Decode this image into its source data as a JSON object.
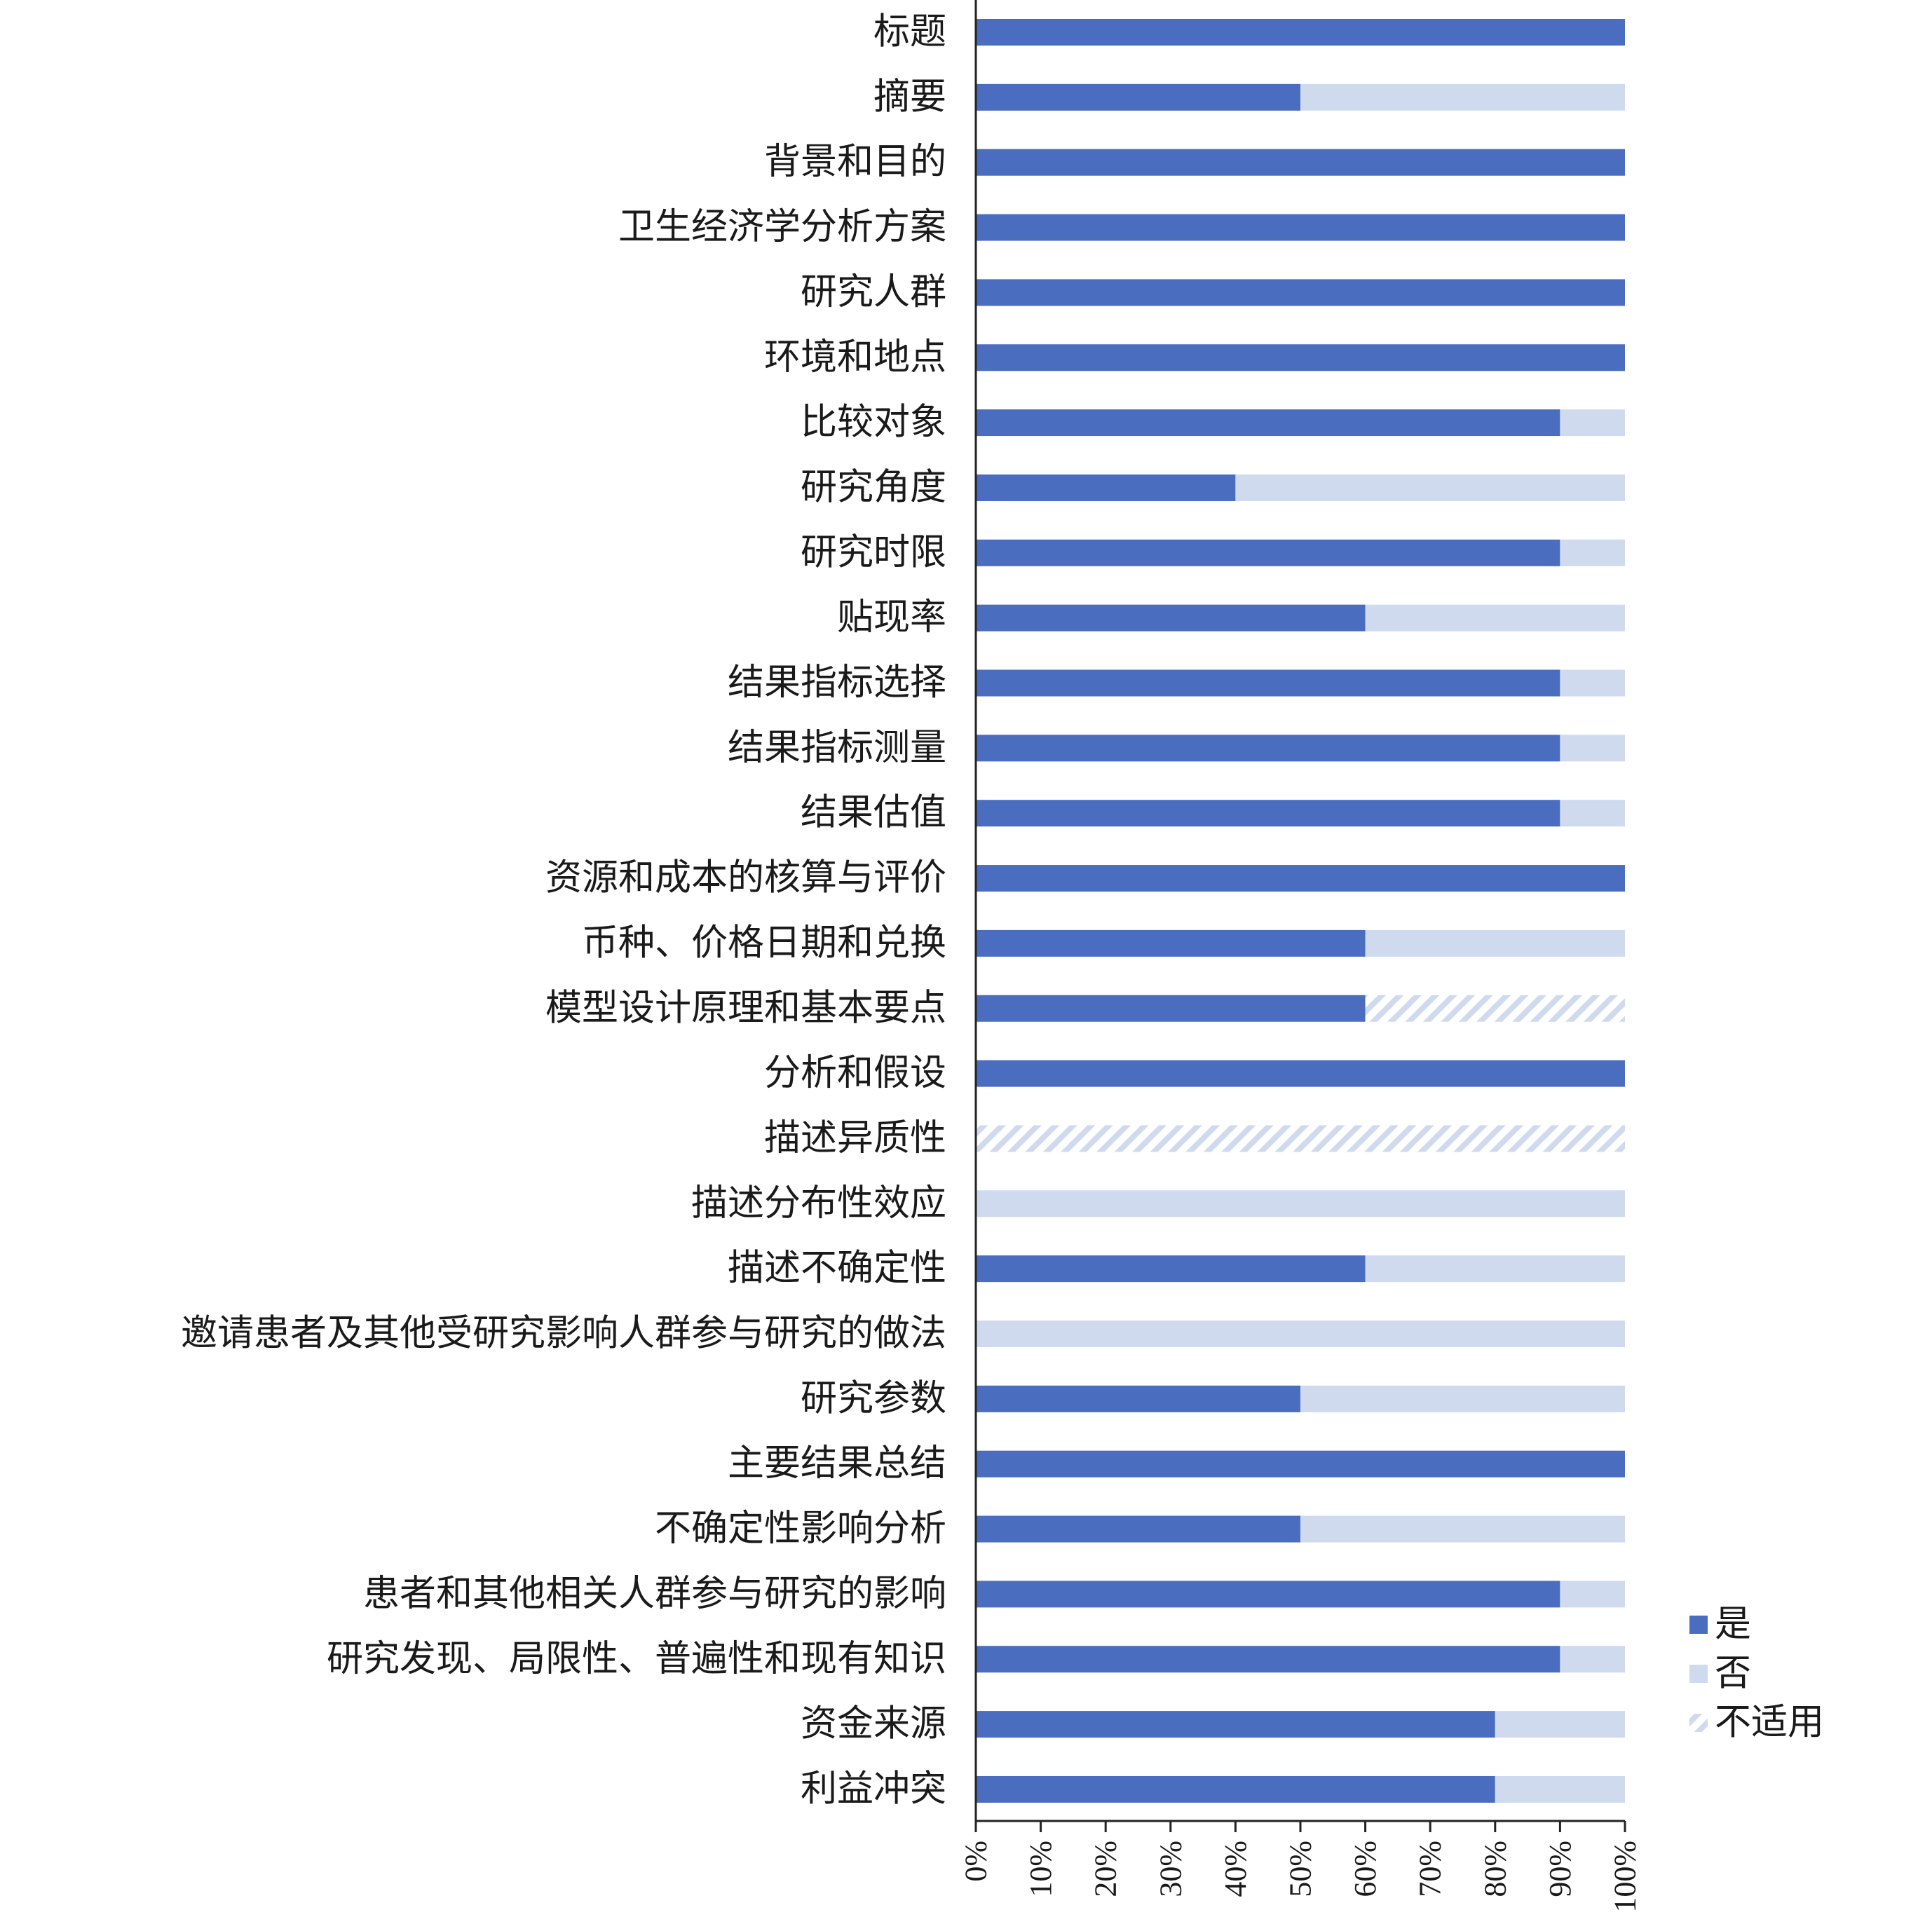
{
  "chart_data": {
    "type": "bar",
    "orientation": "horizontal",
    "stacked": true,
    "categories": [
      "标题",
      "摘要",
      "背景和目的",
      "卫生经济学分析方案",
      "研究人群",
      "环境和地点",
      "比较对象",
      "研究角度",
      "研究时限",
      "贴现率",
      "结果指标选择",
      "结果指标测量",
      "结果估值",
      "资源和成本的核算与评价",
      "币种、价格日期和兑换",
      "模型设计原理和基本要点",
      "分析和假设",
      "描述异质性",
      "描述分布性效应",
      "描述不确定性",
      "邀请患者及其他受研究影响人群参与研究的做法",
      "研究参数",
      "主要结果总结",
      "不确定性影响分析",
      "患者和其他相关人群参与研究的影响",
      "研究发现、局限性、普遍性和现有知识",
      "资金来源",
      "利益冲突"
    ],
    "series": [
      {
        "name": "是",
        "color": "#4a6dbf",
        "pattern": "solid",
        "values": [
          100,
          50,
          100,
          100,
          100,
          100,
          90,
          40,
          90,
          60,
          90,
          90,
          90,
          100,
          60,
          60,
          100,
          0,
          0,
          60,
          0,
          50,
          100,
          50,
          90,
          90,
          80,
          80
        ]
      },
      {
        "name": "否",
        "color": "#cfdaef",
        "pattern": "solid",
        "values": [
          0,
          50,
          0,
          0,
          0,
          0,
          10,
          60,
          10,
          40,
          10,
          10,
          10,
          0,
          40,
          0,
          0,
          0,
          100,
          40,
          100,
          50,
          0,
          50,
          10,
          10,
          20,
          20
        ]
      },
      {
        "name": "不适用",
        "color": "#cfdaef",
        "pattern": "hatch",
        "values": [
          0,
          0,
          0,
          0,
          0,
          0,
          0,
          0,
          0,
          0,
          0,
          0,
          0,
          0,
          0,
          40,
          0,
          100,
          0,
          0,
          0,
          0,
          0,
          0,
          0,
          0,
          0,
          0
        ]
      }
    ],
    "xlim": [
      0,
      100
    ],
    "xticks": [
      "0%",
      "10%",
      "20%",
      "30%",
      "40%",
      "50%",
      "60%",
      "70%",
      "80%",
      "90%",
      "100%"
    ],
    "tick_label_rotation": "vertical",
    "legend": {
      "position": "bottom-right",
      "entries": [
        "是",
        "否",
        "不适用"
      ]
    },
    "grid": false
  }
}
